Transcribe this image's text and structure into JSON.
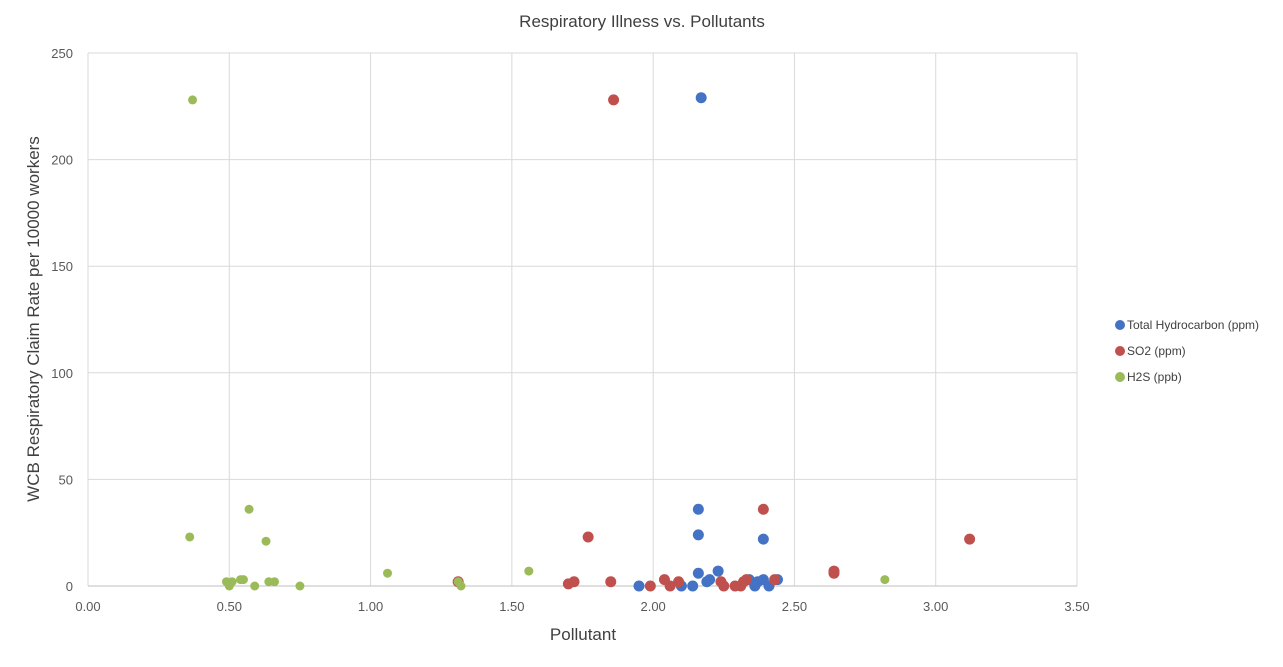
{
  "chart_data": {
    "type": "scatter",
    "title": "Respiratory Illness vs. Pollutants",
    "xlabel": "Pollutant",
    "ylabel": "WCB Respiratory Claim Rate per 10000 workers",
    "xlim": [
      0,
      3.5
    ],
    "ylim": [
      0,
      250
    ],
    "xticks": [
      "0.00",
      "0.50",
      "1.00",
      "1.50",
      "2.00",
      "2.50",
      "3.00",
      "3.50"
    ],
    "yticks": [
      "0",
      "50",
      "100",
      "150",
      "200",
      "250"
    ],
    "grid": true,
    "legend_position": "right",
    "series": [
      {
        "name": "Total Hydrocarbon (ppm)",
        "color": "#4472C4",
        "points": [
          [
            2.17,
            229
          ],
          [
            2.16,
            36
          ],
          [
            2.16,
            24
          ],
          [
            2.16,
            6
          ],
          [
            2.23,
            7
          ],
          [
            2.2,
            3
          ],
          [
            2.19,
            2
          ],
          [
            2.1,
            0
          ],
          [
            2.14,
            0
          ],
          [
            1.95,
            0
          ],
          [
            2.34,
            3
          ],
          [
            2.36,
            0
          ],
          [
            2.37,
            2
          ],
          [
            2.39,
            3
          ],
          [
            2.41,
            0
          ],
          [
            2.44,
            3
          ],
          [
            2.39,
            22
          ]
        ]
      },
      {
        "name": "SO2 (ppm)",
        "color": "#C0504D",
        "points": [
          [
            1.86,
            228
          ],
          [
            1.77,
            23
          ],
          [
            2.39,
            36
          ],
          [
            3.12,
            22
          ],
          [
            2.64,
            7
          ],
          [
            2.64,
            6
          ],
          [
            1.31,
            2
          ],
          [
            1.7,
            1
          ],
          [
            1.72,
            2
          ],
          [
            1.85,
            2
          ],
          [
            1.99,
            0
          ],
          [
            2.04,
            3
          ],
          [
            2.06,
            0
          ],
          [
            2.09,
            2
          ],
          [
            2.24,
            2
          ],
          [
            2.25,
            0
          ],
          [
            2.29,
            0
          ],
          [
            2.31,
            0
          ],
          [
            2.32,
            2
          ],
          [
            2.33,
            3
          ],
          [
            2.43,
            3
          ]
        ]
      },
      {
        "name": "H2S (ppb)",
        "color": "#9BBB59",
        "points": [
          [
            0.37,
            228
          ],
          [
            0.36,
            23
          ],
          [
            0.57,
            36
          ],
          [
            0.63,
            21
          ],
          [
            0.49,
            2
          ],
          [
            0.5,
            0
          ],
          [
            0.51,
            2
          ],
          [
            0.54,
            3
          ],
          [
            0.55,
            3
          ],
          [
            0.59,
            0
          ],
          [
            0.64,
            2
          ],
          [
            0.66,
            2
          ],
          [
            0.75,
            0
          ],
          [
            1.06,
            6
          ],
          [
            1.31,
            2
          ],
          [
            1.32,
            0
          ],
          [
            1.56,
            7
          ],
          [
            2.82,
            3
          ]
        ]
      }
    ]
  }
}
